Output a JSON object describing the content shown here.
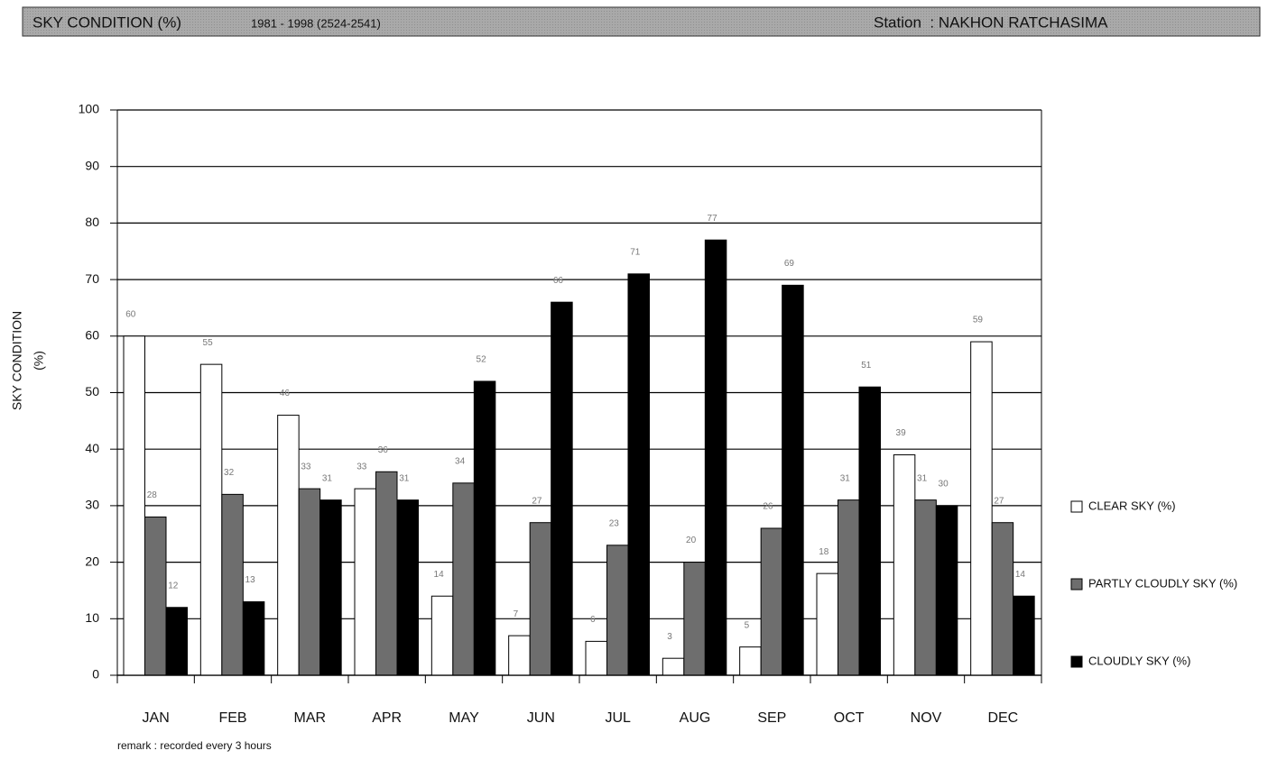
{
  "chart_data": {
    "type": "bar",
    "title": "SKY CONDITION (%)",
    "subtitle": "1981 - 1998 (2524-2541)",
    "station": "Station  : NAKHON RATCHASIMA",
    "y_label": [
      "SKY CONDITION",
      "(%)"
    ],
    "remark": "remark : recorded every 3 hours",
    "categories": [
      "JAN",
      "FEB",
      "MAR",
      "APR",
      "MAY",
      "JUN",
      "JUL",
      "AUG",
      "SEP",
      "OCT",
      "NOV",
      "DEC"
    ],
    "series": [
      {
        "name": "CLEAR SKY (%)",
        "color": "#ffffff",
        "values": [
          60,
          55,
          46,
          33,
          14,
          7,
          6,
          3,
          5,
          18,
          39,
          59
        ]
      },
      {
        "name": "PARTLY CLOUDLY SKY (%)",
        "color": "#6e6e6e",
        "values": [
          28,
          32,
          33,
          36,
          34,
          27,
          23,
          20,
          26,
          31,
          31,
          27
        ]
      },
      {
        "name": "CLOUDLY SKY (%)",
        "color": "#000000",
        "values": [
          12,
          13,
          31,
          31,
          52,
          66,
          71,
          77,
          69,
          51,
          30,
          14
        ]
      }
    ],
    "ylim": [
      0,
      100
    ],
    "yticks": [
      0,
      10,
      20,
      30,
      40,
      50,
      60,
      70,
      80,
      90,
      100
    ],
    "grid": true,
    "legend": "right"
  }
}
